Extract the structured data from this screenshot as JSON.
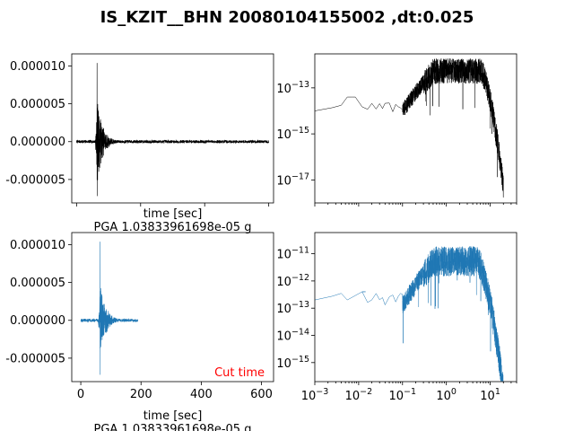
{
  "figure": {
    "title": "IS_KZIT__BHN 20080104155002 ,dt:0.025"
  },
  "colors": {
    "series_raw": "#000000",
    "series_cut": "#1f77b4",
    "annotation": "#ff0000"
  },
  "chart_data": [
    {
      "id": "raw_time",
      "type": "line",
      "series": [
        {
          "color": "#000000"
        }
      ],
      "xlim": [
        -15,
        615
      ],
      "ylim": [
        -8.1e-06,
        1.16e-05
      ],
      "yticks": [
        "-0.000005",
        "0.000000",
        "0.000005",
        "0.000010"
      ],
      "ytick_values": [
        -5e-06,
        0,
        5e-06,
        1e-05
      ],
      "xtick_values": [
        0,
        200,
        400,
        600
      ],
      "xticklabels_shown": false,
      "xlabel": "time [sec]",
      "caption": "PGA 1.03833961698e-05 g",
      "signal": {
        "start": 0,
        "event_onset": 58,
        "peak_time": 64,
        "decay_end": 200,
        "end": 600,
        "peak": 1.04e-05,
        "trough": -7.2e-06,
        "noise": 2e-07
      }
    },
    {
      "id": "raw_spectrum",
      "type": "line",
      "series": [
        {
          "color": "#000000"
        }
      ],
      "xscale": "log",
      "yscale": "log",
      "xlim": [
        0.001,
        40
      ],
      "ylim": [
        1e-18,
        3e-12
      ],
      "yticks": [
        "10^-17",
        "10^-15",
        "10^-13"
      ],
      "ytick_values": [
        1e-17,
        1e-15,
        1e-13
      ],
      "xtick_values": [
        0.001,
        0.01,
        0.1,
        1,
        10
      ],
      "xticklabels_shown": false,
      "spectrum": {
        "low_level": 1e-14,
        "bump_freq": 0.007,
        "bump_level": 4e-14,
        "dip_level": 1.5e-14,
        "plateau_level": 1e-12,
        "plateau_start": 0.5,
        "plateau_end": 6,
        "end_freq": 20,
        "end_level": 1e-17
      }
    },
    {
      "id": "cut_time",
      "type": "line",
      "series": [
        {
          "color": "#1f77b4"
        }
      ],
      "xlim": [
        -30,
        640
      ],
      "ylim": [
        -8.1e-06,
        1.16e-05
      ],
      "yticks": [
        "-0.000005",
        "0.000000",
        "0.000005",
        "0.000010"
      ],
      "ytick_values": [
        -5e-06,
        0,
        5e-06,
        1e-05
      ],
      "xticks": [
        "0",
        "200",
        "400",
        "600"
      ],
      "xtick_values": [
        0,
        200,
        400,
        600
      ],
      "xlabel": "time [sec]",
      "caption": "PGA 1.03833961698e-05 g",
      "annotation": "Cut time",
      "signal": {
        "start": 0,
        "event_onset": 58,
        "peak_time": 64,
        "decay_end": 190,
        "end": 190,
        "peak": 1.04e-05,
        "trough": -7.2e-06,
        "noise": 2e-07
      }
    },
    {
      "id": "cut_spectrum",
      "type": "line",
      "series": [
        {
          "color": "#1f77b4"
        }
      ],
      "xscale": "log",
      "yscale": "log",
      "xlim": [
        0.001,
        40
      ],
      "ylim": [
        2e-16,
        6e-11
      ],
      "yticks": [
        "10^-15",
        "10^-14",
        "10^-13",
        "10^-12",
        "10^-11"
      ],
      "ytick_values": [
        1e-15,
        1e-14,
        1e-13,
        1e-12,
        1e-11
      ],
      "xticks": [
        "10^-3",
        "10^-2",
        "10^-1",
        "10^0",
        "10^1"
      ],
      "xtick_values": [
        0.001,
        0.01,
        0.1,
        1,
        10
      ],
      "spectrum": {
        "low_level": 2e-13,
        "bump_freq": 0.012,
        "bump_level": 4e-13,
        "dip_level": 2e-13,
        "plateau_level": 1e-11,
        "plateau_start": 0.5,
        "plateau_end": 5,
        "end_freq": 20,
        "end_level": 2e-16
      }
    }
  ]
}
